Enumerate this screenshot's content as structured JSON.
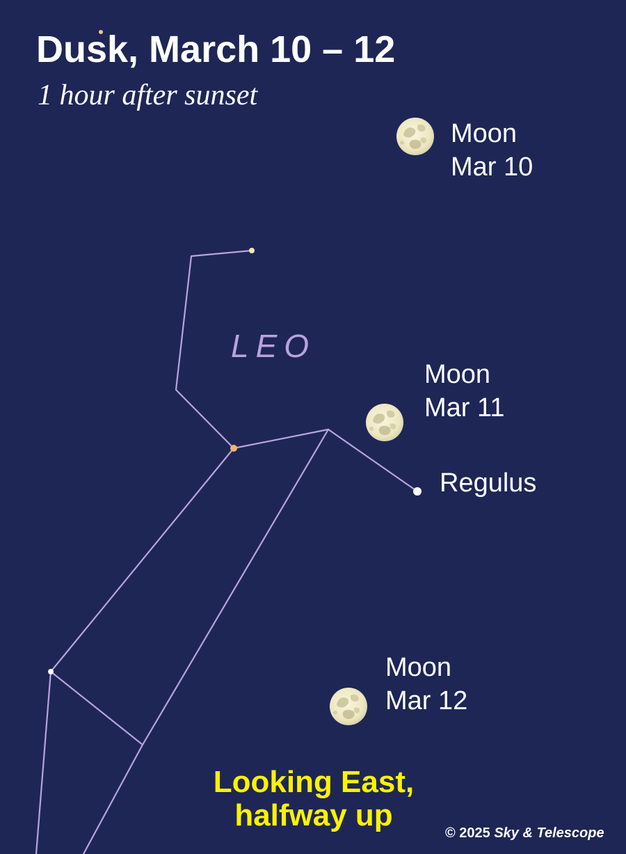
{
  "header": {
    "title": "Dusk, March 10 – 12",
    "subtitle": "1 hour after sunset"
  },
  "constellation": {
    "name": "LEO",
    "line_color": "#b9a3de",
    "stars": [
      {
        "id": "star-top-right",
        "color": "#f5e7b2"
      },
      {
        "id": "star-hook-corner"
      },
      {
        "id": "star-hook-bend"
      },
      {
        "id": "star-orange",
        "color": "#f2b36d"
      },
      {
        "id": "star-back-mid"
      },
      {
        "id": "regulus",
        "name": "Regulus",
        "color": "#ffffff"
      },
      {
        "id": "star-lower-left",
        "color": "#ffffff"
      },
      {
        "id": "star-lower-junction"
      }
    ]
  },
  "moons": [
    {
      "id": "moon-mar-10",
      "line1": "Moon",
      "line2": "Mar 10"
    },
    {
      "id": "moon-mar-11",
      "line1": "Moon",
      "line2": "Mar 11"
    },
    {
      "id": "moon-mar-12",
      "line1": "Moon",
      "line2": "Mar 12"
    }
  ],
  "orientation": {
    "line1": "Looking East,",
    "line2": "halfway up",
    "color": "#fdf200"
  },
  "credit": {
    "prefix": "© 2025 ",
    "org": "Sky & Telescope"
  },
  "colors": {
    "sky": "#1e2656",
    "moon": "#f1ecc9",
    "moon_shadow": "#cfc9a2",
    "text": "#ffffff"
  }
}
